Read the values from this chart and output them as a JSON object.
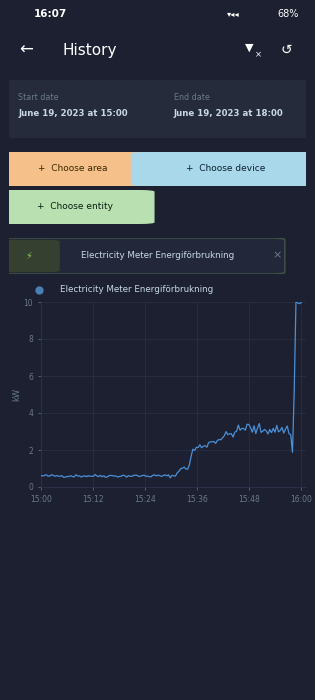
{
  "bg_color": "#1c2030",
  "card_color": "#252b3a",
  "status_time": "16:07",
  "status_battery": "68%",
  "title": "History",
  "start_date_label": "Start date",
  "start_date_value": "June 19, 2023 at 15:00",
  "end_date_label": "End date",
  "end_date_value": "June 19, 2023 at 18:00",
  "btn_area_text": "+  Choose area",
  "btn_area_color": "#f5c08a",
  "btn_device_text": "+  Choose device",
  "btn_device_color": "#a8d8ea",
  "btn_entity_text": "+  Choose entity",
  "btn_entity_color": "#b8e0b0",
  "tag_text": "Electricity Meter Energiförbrukning",
  "legend_text": "Electricity Meter Energiförbrukning",
  "legend_dot_color": "#4a7fb5",
  "chart_line_color": "#4a90d9",
  "grid_color": "#2a3048",
  "axis_label_color": "#6a7a8a",
  "ylabel": "kW",
  "ylim": [
    0,
    10
  ],
  "yticks": [
    0,
    2,
    4,
    6,
    8,
    10
  ],
  "xtick_labels": [
    "15:00",
    "15:12",
    "15:24",
    "15:36",
    "15:48",
    "16:00"
  ],
  "text_color": "#c8d8e8",
  "text_color_dim": "#6a7a8a",
  "text_white": "#ffffff"
}
